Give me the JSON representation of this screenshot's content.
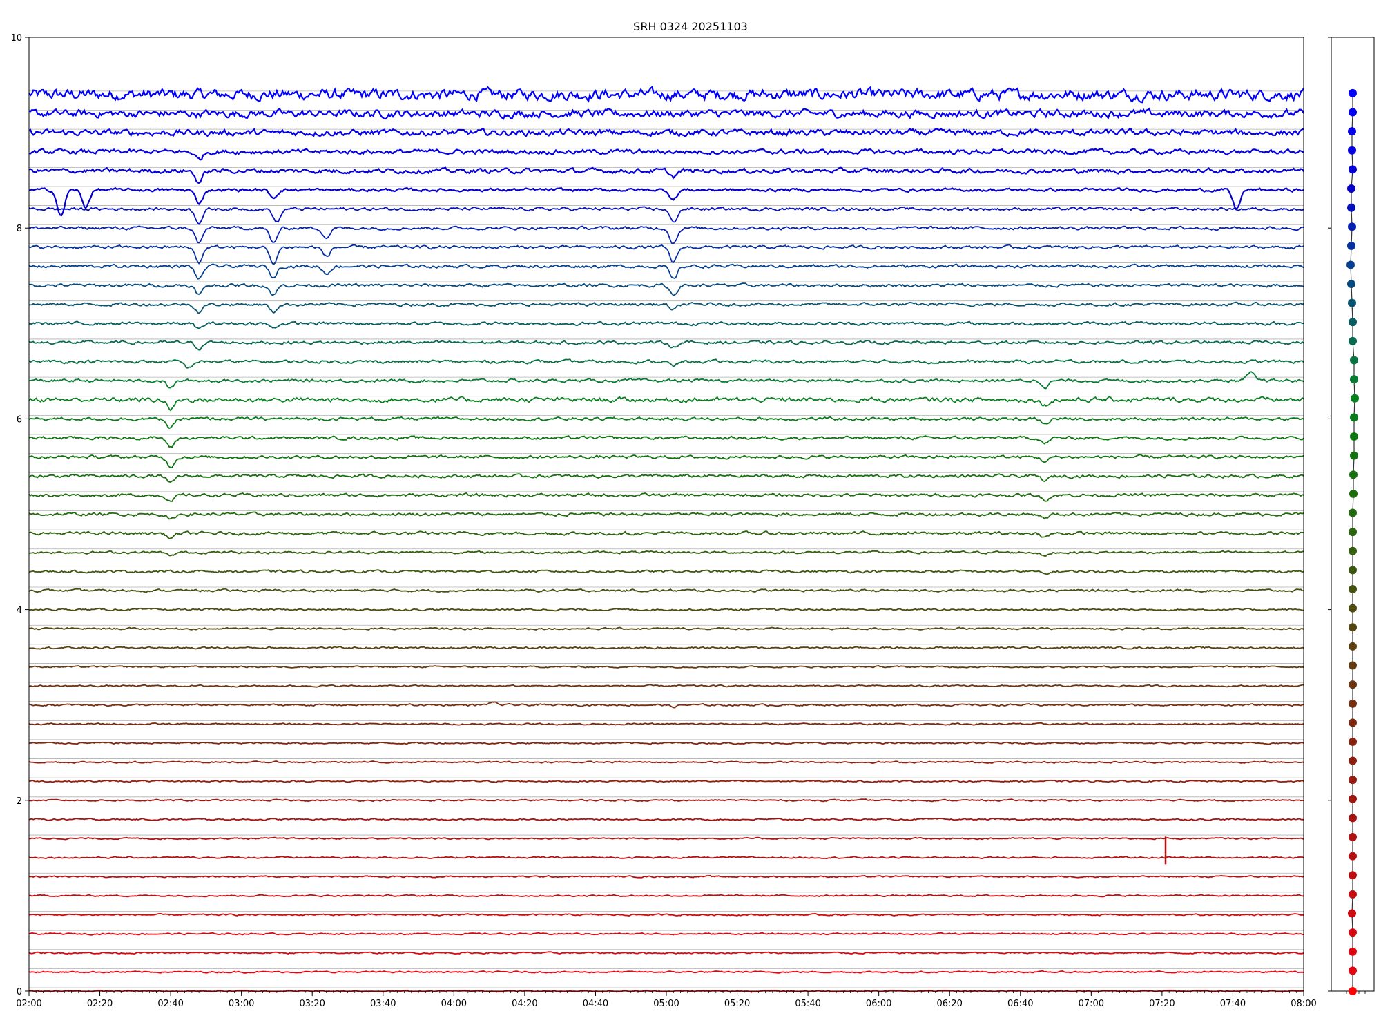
{
  "chart_data": [
    {
      "type": "line",
      "title": "SRH 0324 20251103",
      "xlabel": "",
      "ylabel": "",
      "x_range": [
        "02:00",
        "08:00"
      ],
      "x_ticks": [
        "02:00",
        "02:20",
        "02:40",
        "03:00",
        "03:20",
        "03:40",
        "04:00",
        "04:20",
        "04:40",
        "05:00",
        "05:20",
        "05:40",
        "06:00",
        "06:20",
        "06:40",
        "07:00",
        "07:20",
        "07:40",
        "08:00"
      ],
      "y_ticks": [
        0,
        2,
        4,
        6,
        8,
        10
      ],
      "ylim": [
        0,
        10
      ],
      "grid": false,
      "legend": "none",
      "color_gradient": {
        "top": "#0000ff",
        "middle": "#008000",
        "bottom": "#ff0000"
      },
      "series": [
        {
          "baseline": 9.4,
          "color": "#0000ff",
          "noise": 0.07
        },
        {
          "baseline": 9.2,
          "color": "#0300f5",
          "noise": 0.05
        },
        {
          "baseline": 9.0,
          "color": "#0500ea",
          "noise": 0.04
        },
        {
          "baseline": 8.8,
          "color": "#0500e0",
          "noise": 0.03,
          "dips": [
            {
              "t": "02:48",
              "depth": 0.08
            }
          ]
        },
        {
          "baseline": 8.6,
          "color": "#0500d5",
          "noise": 0.03,
          "dips": [
            {
              "t": "02:48",
              "depth": 0.12
            },
            {
              "t": "05:02",
              "depth": 0.06
            }
          ]
        },
        {
          "baseline": 8.4,
          "color": "#0500ca",
          "noise": 0.02,
          "dips": [
            {
              "t": "02:09",
              "depth": 0.28
            },
            {
              "t": "02:16",
              "depth": 0.18
            },
            {
              "t": "02:48",
              "depth": 0.14
            },
            {
              "t": "03:09",
              "depth": 0.08
            },
            {
              "t": "05:02",
              "depth": 0.1
            },
            {
              "t": "07:41",
              "depth": 0.2
            }
          ]
        },
        {
          "baseline": 8.2,
          "color": "#0510bf",
          "noise": 0.02,
          "dips": [
            {
              "t": "02:48",
              "depth": 0.14
            },
            {
              "t": "03:10",
              "depth": 0.14
            },
            {
              "t": "05:02",
              "depth": 0.14
            }
          ]
        },
        {
          "baseline": 8.0,
          "color": "#0520b0",
          "noise": 0.02,
          "dips": [
            {
              "t": "02:48",
              "depth": 0.16
            },
            {
              "t": "03:09",
              "depth": 0.16
            },
            {
              "t": "03:24",
              "depth": 0.1
            },
            {
              "t": "05:02",
              "depth": 0.16
            }
          ]
        },
        {
          "baseline": 7.8,
          "color": "#0530a0",
          "noise": 0.02,
          "dips": [
            {
              "t": "02:48",
              "depth": 0.16
            },
            {
              "t": "03:09",
              "depth": 0.18
            },
            {
              "t": "03:24",
              "depth": 0.1
            },
            {
              "t": "05:02",
              "depth": 0.16
            }
          ]
        },
        {
          "baseline": 7.6,
          "color": "#064090",
          "noise": 0.02,
          "dips": [
            {
              "t": "02:48",
              "depth": 0.14
            },
            {
              "t": "03:09",
              "depth": 0.12
            },
            {
              "t": "03:24",
              "depth": 0.08
            },
            {
              "t": "05:02",
              "depth": 0.14
            }
          ]
        },
        {
          "baseline": 7.4,
          "color": "#074a80",
          "noise": 0.02,
          "dips": [
            {
              "t": "02:48",
              "depth": 0.1
            },
            {
              "t": "03:09",
              "depth": 0.1
            },
            {
              "t": "05:02",
              "depth": 0.1
            }
          ]
        },
        {
          "baseline": 7.2,
          "color": "#085470",
          "noise": 0.02,
          "dips": [
            {
              "t": "02:48",
              "depth": 0.08
            },
            {
              "t": "03:09",
              "depth": 0.08
            },
            {
              "t": "05:02",
              "depth": 0.06
            }
          ]
        },
        {
          "baseline": 7.0,
          "color": "#085e60",
          "noise": 0.02,
          "dips": [
            {
              "t": "02:48",
              "depth": 0.06
            },
            {
              "t": "03:09",
              "depth": 0.05
            }
          ]
        },
        {
          "baseline": 6.8,
          "color": "#086850",
          "noise": 0.02,
          "dips": [
            {
              "t": "02:48",
              "depth": 0.06
            },
            {
              "t": "05:02",
              "depth": 0.05
            }
          ]
        },
        {
          "baseline": 6.6,
          "color": "#087240",
          "noise": 0.02,
          "dips": [
            {
              "t": "02:45",
              "depth": 0.07
            },
            {
              "t": "05:02",
              "depth": 0.05
            }
          ]
        },
        {
          "baseline": 6.4,
          "color": "#087c30",
          "noise": 0.02,
          "dips": [
            {
              "t": "02:40",
              "depth": 0.08
            },
            {
              "t": "06:47",
              "depth": 0.06
            },
            {
              "t": "07:45",
              "depth": -0.08
            }
          ]
        },
        {
          "baseline": 6.2,
          "color": "#088020",
          "noise": 0.03,
          "dips": [
            {
              "t": "02:40",
              "depth": 0.1
            },
            {
              "t": "06:47",
              "depth": 0.06
            }
          ]
        },
        {
          "baseline": 6.0,
          "color": "#087c18",
          "noise": 0.02,
          "dips": [
            {
              "t": "02:40",
              "depth": 0.1
            },
            {
              "t": "06:47",
              "depth": 0.06
            }
          ]
        },
        {
          "baseline": 5.8,
          "color": "#0c7810",
          "noise": 0.02,
          "dips": [
            {
              "t": "02:40",
              "depth": 0.1
            },
            {
              "t": "06:47",
              "depth": 0.06
            }
          ]
        },
        {
          "baseline": 5.6,
          "color": "#127410",
          "noise": 0.02,
          "dips": [
            {
              "t": "02:40",
              "depth": 0.1
            },
            {
              "t": "06:47",
              "depth": 0.05
            }
          ]
        },
        {
          "baseline": 5.4,
          "color": "#187010",
          "noise": 0.02,
          "dips": [
            {
              "t": "02:40",
              "depth": 0.08
            },
            {
              "t": "06:47",
              "depth": 0.05
            }
          ]
        },
        {
          "baseline": 5.2,
          "color": "#1e6c10",
          "noise": 0.02,
          "dips": [
            {
              "t": "02:40",
              "depth": 0.07
            },
            {
              "t": "06:47",
              "depth": 0.05
            }
          ]
        },
        {
          "baseline": 5.0,
          "color": "#246810",
          "noise": 0.02,
          "dips": [
            {
              "t": "02:40",
              "depth": 0.06
            },
            {
              "t": "06:47",
              "depth": 0.04
            }
          ]
        },
        {
          "baseline": 4.8,
          "color": "#2c6410",
          "noise": 0.02,
          "dips": [
            {
              "t": "02:40",
              "depth": 0.05
            },
            {
              "t": "06:47",
              "depth": 0.04
            }
          ]
        },
        {
          "baseline": 4.6,
          "color": "#345e10",
          "noise": 0.015,
          "dips": [
            {
              "t": "02:40",
              "depth": 0.04
            },
            {
              "t": "06:47",
              "depth": 0.04
            }
          ]
        },
        {
          "baseline": 4.4,
          "color": "#3c5810",
          "noise": 0.015,
          "dips": [
            {
              "t": "06:47",
              "depth": 0.03
            }
          ]
        },
        {
          "baseline": 4.2,
          "color": "#445210",
          "noise": 0.015
        },
        {
          "baseline": 4.0,
          "color": "#4c4c10",
          "noise": 0.012
        },
        {
          "baseline": 3.8,
          "color": "#544610",
          "noise": 0.012
        },
        {
          "baseline": 3.6,
          "color": "#5c4010",
          "noise": 0.012
        },
        {
          "baseline": 3.4,
          "color": "#643a10",
          "noise": 0.01
        },
        {
          "baseline": 3.2,
          "color": "#6c3410",
          "noise": 0.01
        },
        {
          "baseline": 3.0,
          "color": "#742e10",
          "noise": 0.012,
          "dips": [
            {
              "t": "04:11",
              "depth": -0.03
            },
            {
              "t": "05:02",
              "depth": 0.02
            }
          ]
        },
        {
          "baseline": 2.8,
          "color": "#7c2810",
          "noise": 0.01
        },
        {
          "baseline": 2.6,
          "color": "#842410",
          "noise": 0.01
        },
        {
          "baseline": 2.4,
          "color": "#8c2010",
          "noise": 0.01
        },
        {
          "baseline": 2.2,
          "color": "#941c10",
          "noise": 0.01
        },
        {
          "baseline": 2.0,
          "color": "#9c1810",
          "noise": 0.01
        },
        {
          "baseline": 1.8,
          "color": "#a41410",
          "noise": 0.01
        },
        {
          "baseline": 1.6,
          "color": "#ac1210",
          "noise": 0.01
        },
        {
          "baseline": 1.4,
          "color": "#b41010",
          "noise": 0.01,
          "spike": {
            "t": "07:21",
            "top": 1.62,
            "bottom": 1.33
          }
        },
        {
          "baseline": 1.2,
          "color": "#bc0e10",
          "noise": 0.01
        },
        {
          "baseline": 1.0,
          "color": "#c40c10",
          "noise": 0.01
        },
        {
          "baseline": 0.8,
          "color": "#cc0a10",
          "noise": 0.01
        },
        {
          "baseline": 0.6,
          "color": "#d40810",
          "noise": 0.01
        },
        {
          "baseline": 0.4,
          "color": "#dc0610",
          "noise": 0.01
        },
        {
          "baseline": 0.2,
          "color": "#e40410",
          "noise": 0.01
        },
        {
          "baseline": 0.0,
          "color": "#ff0000",
          "noise": 0.008
        }
      ]
    },
    {
      "type": "scatter",
      "title": "",
      "ylim": [
        0,
        10
      ],
      "x_ticks": [],
      "y_ticks": [],
      "points_y": [
        9.4,
        9.2,
        9.0,
        8.8,
        8.6,
        8.4,
        8.2,
        8.0,
        7.8,
        7.6,
        7.4,
        7.2,
        7.0,
        6.8,
        6.6,
        6.4,
        6.2,
        6.0,
        5.8,
        5.6,
        5.4,
        5.2,
        5.0,
        4.8,
        4.6,
        4.4,
        4.2,
        4.0,
        3.8,
        3.6,
        3.4,
        3.2,
        3.0,
        2.8,
        2.6,
        2.4,
        2.2,
        2.0,
        1.8,
        1.6,
        1.4,
        1.2,
        1.0,
        0.8,
        0.6,
        0.4,
        0.2,
        0.0
      ],
      "points_x_offset": [
        0.0,
        0.0,
        -0.05,
        -0.05,
        0.0,
        -0.1,
        -0.1,
        -0.05,
        -0.1,
        -0.15,
        -0.1,
        -0.05,
        0.0,
        0.0,
        0.1,
        0.1,
        0.15,
        0.1,
        0.1,
        0.1,
        0.05,
        0.05,
        0.0,
        0.0,
        0.0,
        0.0,
        0.0,
        0.0,
        0.0,
        0.0,
        0.0,
        0.0,
        0.0,
        0.0,
        0.0,
        0.0,
        0.0,
        0.0,
        0.0,
        0.0,
        0.0,
        0.0,
        0.0,
        -0.05,
        0.0,
        0.0,
        0.0,
        0.0
      ]
    }
  ]
}
